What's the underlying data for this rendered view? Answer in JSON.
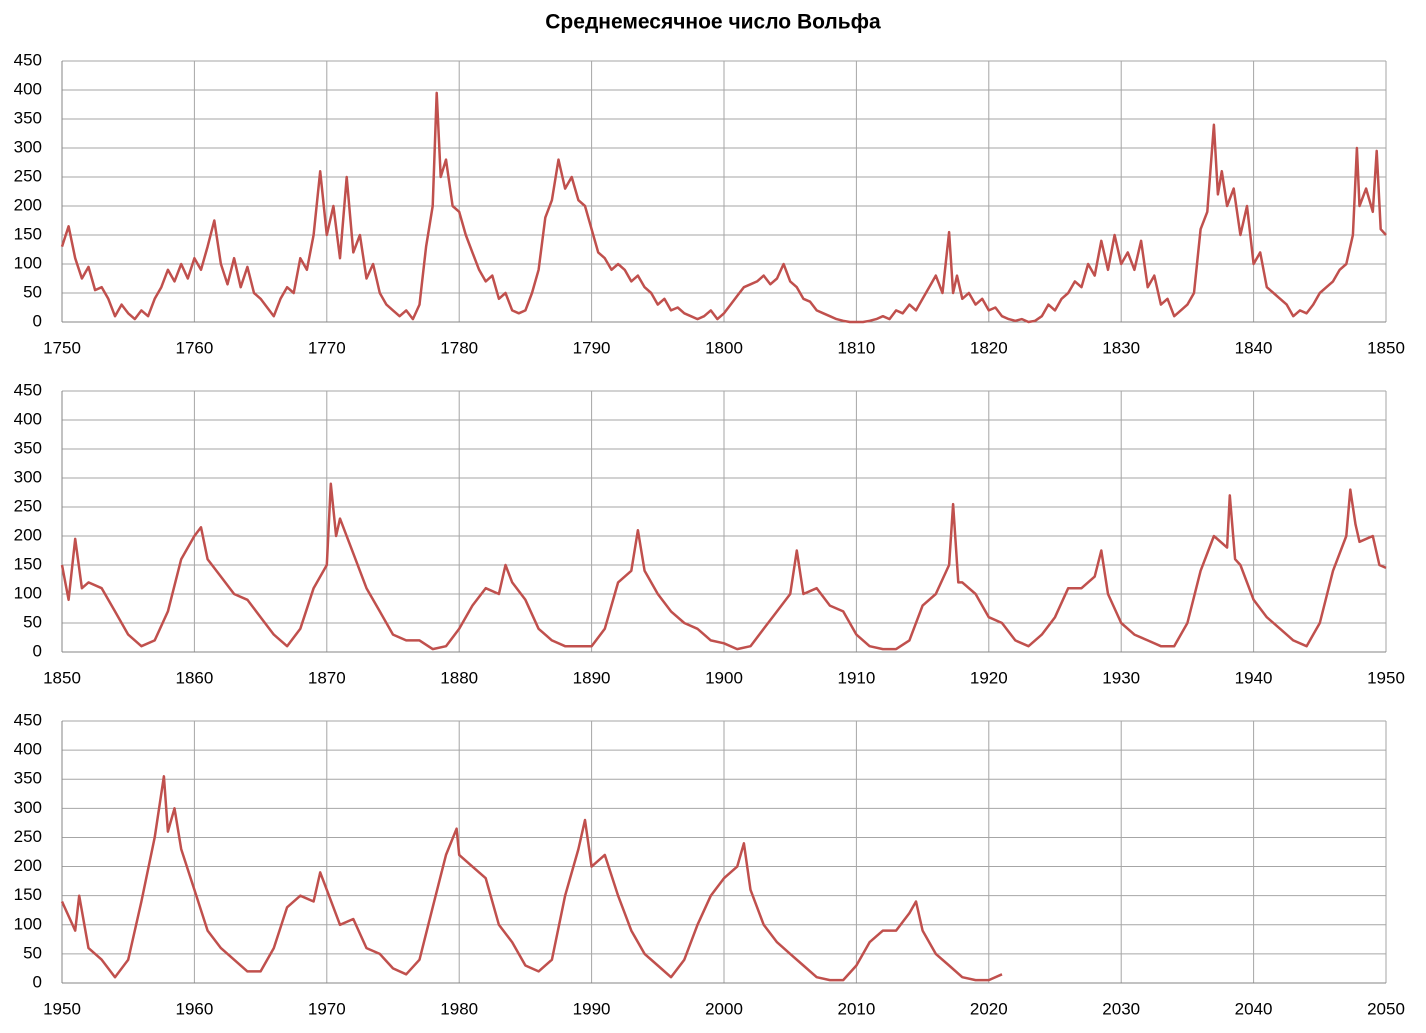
{
  "chart_data": [
    {
      "type": "line",
      "title": "Среднемесячное число Вольфа",
      "color": "#c0504d",
      "grid": true,
      "xlim": [
        1750,
        1850
      ],
      "xticks": [
        1750,
        1760,
        1770,
        1780,
        1790,
        1800,
        1810,
        1820,
        1830,
        1840,
        1850
      ],
      "ylim": [
        0,
        450
      ],
      "yticks": [
        0,
        50,
        100,
        150,
        200,
        250,
        300,
        350,
        400,
        450
      ],
      "x": [
        1750,
        1750.5,
        1751,
        1751.5,
        1752,
        1752.5,
        1753,
        1753.5,
        1754,
        1754.5,
        1755,
        1755.5,
        1756,
        1756.5,
        1757,
        1757.5,
        1758,
        1758.5,
        1759,
        1759.5,
        1760,
        1760.5,
        1761,
        1761.5,
        1762,
        1762.5,
        1763,
        1763.5,
        1764,
        1764.5,
        1765,
        1765.5,
        1766,
        1766.5,
        1767,
        1767.5,
        1768,
        1768.5,
        1769,
        1769.5,
        1770,
        1770.5,
        1771,
        1771.5,
        1772,
        1772.5,
        1773,
        1773.5,
        1774,
        1774.5,
        1775,
        1775.5,
        1776,
        1776.5,
        1777,
        1777.5,
        1778,
        1778.3,
        1778.6,
        1779,
        1779.5,
        1780,
        1780.5,
        1781,
        1781.5,
        1782,
        1782.5,
        1783,
        1783.5,
        1784,
        1784.5,
        1785,
        1785.5,
        1786,
        1786.5,
        1787,
        1787.5,
        1788,
        1788.5,
        1789,
        1789.5,
        1790,
        1790.5,
        1791,
        1791.5,
        1792,
        1792.5,
        1793,
        1793.5,
        1794,
        1794.5,
        1795,
        1795.5,
        1796,
        1796.5,
        1797,
        1797.5,
        1798,
        1798.5,
        1799,
        1799.5,
        1800,
        1800.5,
        1801,
        1801.5,
        1802,
        1802.5,
        1803,
        1803.5,
        1804,
        1804.5,
        1805,
        1805.5,
        1806,
        1806.5,
        1807,
        1807.5,
        1808,
        1808.5,
        1809,
        1809.5,
        1810,
        1810.5,
        1811,
        1811.5,
        1812,
        1812.5,
        1813,
        1813.5,
        1814,
        1814.5,
        1815,
        1815.5,
        1816,
        1816.5,
        1817,
        1817.3,
        1817.6,
        1818,
        1818.5,
        1819,
        1819.5,
        1820,
        1820.5,
        1821,
        1821.5,
        1822,
        1822.5,
        1823,
        1823.5,
        1824,
        1824.5,
        1825,
        1825.5,
        1826,
        1826.5,
        1827,
        1827.5,
        1828,
        1828.5,
        1829,
        1829.5,
        1830,
        1830.5,
        1831,
        1831.5,
        1832,
        1832.5,
        1833,
        1833.5,
        1834,
        1834.5,
        1835,
        1835.5,
        1836,
        1836.5,
        1837,
        1837.3,
        1837.6,
        1838,
        1838.5,
        1839,
        1839.5,
        1840,
        1840.5,
        1841,
        1841.5,
        1842,
        1842.5,
        1843,
        1843.5,
        1844,
        1844.5,
        1845,
        1845.5,
        1846,
        1846.5,
        1847,
        1847.5,
        1847.8,
        1848,
        1848.5,
        1849,
        1849.3,
        1849.6,
        1850
      ],
      "values": [
        130,
        165,
        110,
        75,
        95,
        55,
        60,
        40,
        10,
        30,
        15,
        5,
        20,
        10,
        40,
        60,
        90,
        70,
        100,
        75,
        110,
        90,
        130,
        175,
        100,
        65,
        110,
        60,
        95,
        50,
        40,
        25,
        10,
        40,
        60,
        50,
        110,
        90,
        150,
        260,
        150,
        200,
        110,
        250,
        120,
        150,
        75,
        100,
        50,
        30,
        20,
        10,
        20,
        5,
        30,
        130,
        200,
        395,
        250,
        280,
        200,
        190,
        150,
        120,
        90,
        70,
        80,
        40,
        50,
        20,
        15,
        20,
        50,
        90,
        180,
        210,
        280,
        230,
        250,
        210,
        200,
        160,
        120,
        110,
        90,
        100,
        90,
        70,
        80,
        60,
        50,
        30,
        40,
        20,
        25,
        15,
        10,
        5,
        10,
        20,
        5,
        15,
        30,
        45,
        60,
        65,
        70,
        80,
        65,
        75,
        100,
        70,
        60,
        40,
        35,
        20,
        15,
        10,
        5,
        2,
        0,
        0,
        0,
        2,
        5,
        10,
        5,
        20,
        15,
        30,
        20,
        40,
        60,
        80,
        50,
        155,
        50,
        80,
        40,
        50,
        30,
        40,
        20,
        25,
        10,
        5,
        2,
        5,
        0,
        2,
        10,
        30,
        20,
        40,
        50,
        70,
        60,
        100,
        80,
        140,
        90,
        150,
        100,
        120,
        90,
        140,
        60,
        80,
        30,
        40,
        10,
        20,
        30,
        50,
        160,
        190,
        340,
        220,
        260,
        200,
        230,
        150,
        200,
        100,
        120,
        60,
        50,
        40,
        30,
        10,
        20,
        15,
        30,
        50,
        60,
        70,
        90,
        100,
        150,
        300,
        200,
        230,
        190,
        295,
        160,
        150
      ]
    },
    {
      "type": "line",
      "color": "#c0504d",
      "grid": true,
      "xlim": [
        1850,
        1950
      ],
      "xticks": [
        1850,
        1860,
        1870,
        1880,
        1890,
        1900,
        1910,
        1920,
        1930,
        1940,
        1950
      ],
      "ylim": [
        0,
        450
      ],
      "yticks": [
        0,
        50,
        100,
        150,
        200,
        250,
        300,
        350,
        400,
        450
      ],
      "x": [
        1850,
        1850.5,
        1851,
        1851.5,
        1852,
        1853,
        1854,
        1855,
        1856,
        1857,
        1858,
        1859,
        1860,
        1860.5,
        1861,
        1862,
        1863,
        1864,
        1865,
        1866,
        1867,
        1868,
        1869,
        1870,
        1870.3,
        1870.7,
        1871,
        1872,
        1873,
        1874,
        1875,
        1876,
        1877,
        1878,
        1879,
        1880,
        1881,
        1882,
        1883,
        1883.5,
        1884,
        1885,
        1886,
        1887,
        1888,
        1889,
        1890,
        1891,
        1892,
        1893,
        1893.5,
        1894,
        1895,
        1896,
        1897,
        1898,
        1899,
        1900,
        1901,
        1902,
        1903,
        1904,
        1905,
        1905.5,
        1906,
        1907,
        1908,
        1909,
        1910,
        1911,
        1912,
        1913,
        1914,
        1915,
        1916,
        1917,
        1917.3,
        1917.7,
        1918,
        1919,
        1920,
        1921,
        1922,
        1923,
        1924,
        1925,
        1926,
        1927,
        1928,
        1928.5,
        1929,
        1930,
        1931,
        1932,
        1933,
        1934,
        1935,
        1936,
        1937,
        1938,
        1938.2,
        1938.6,
        1939,
        1940,
        1941,
        1942,
        1943,
        1944,
        1945,
        1946,
        1947,
        1947.3,
        1947.7,
        1948,
        1949,
        1949.5,
        1950
      ],
      "values": [
        150,
        90,
        195,
        110,
        120,
        110,
        70,
        30,
        10,
        20,
        70,
        160,
        200,
        215,
        160,
        130,
        100,
        90,
        60,
        30,
        10,
        40,
        110,
        150,
        290,
        200,
        230,
        170,
        110,
        70,
        30,
        20,
        20,
        5,
        10,
        40,
        80,
        110,
        100,
        150,
        120,
        90,
        40,
        20,
        10,
        10,
        10,
        40,
        120,
        140,
        210,
        140,
        100,
        70,
        50,
        40,
        20,
        15,
        5,
        10,
        40,
        70,
        100,
        175,
        100,
        110,
        80,
        70,
        30,
        10,
        5,
        5,
        20,
        80,
        100,
        150,
        255,
        120,
        120,
        100,
        60,
        50,
        20,
        10,
        30,
        60,
        110,
        110,
        130,
        175,
        100,
        50,
        30,
        20,
        10,
        10,
        50,
        140,
        200,
        180,
        270,
        160,
        150,
        90,
        60,
        40,
        20,
        10,
        50,
        140,
        200,
        280,
        220,
        190,
        200,
        150,
        145
      ]
    },
    {
      "type": "line",
      "color": "#c0504d",
      "grid": true,
      "xlim": [
        1950,
        2050
      ],
      "xticks": [
        1950,
        1960,
        1970,
        1980,
        1990,
        2000,
        2010,
        2020,
        2030,
        2040,
        2050
      ],
      "ylim": [
        0,
        450
      ],
      "yticks": [
        0,
        50,
        100,
        150,
        200,
        250,
        300,
        350,
        400,
        450
      ],
      "x": [
        1950,
        1951,
        1951.3,
        1952,
        1953,
        1954,
        1955,
        1956,
        1957,
        1957.7,
        1958,
        1958.5,
        1959,
        1960,
        1961,
        1962,
        1963,
        1964,
        1965,
        1966,
        1967,
        1968,
        1969,
        1969.5,
        1970,
        1971,
        1972,
        1973,
        1974,
        1975,
        1976,
        1977,
        1978,
        1979,
        1979.8,
        1980,
        1981,
        1982,
        1983,
        1984,
        1985,
        1986,
        1987,
        1988,
        1989,
        1989.5,
        1990,
        1991,
        1992,
        1993,
        1994,
        1995,
        1996,
        1997,
        1998,
        1999,
        2000,
        2001,
        2001.5,
        2002,
        2003,
        2004,
        2005,
        2006,
        2007,
        2008,
        2009,
        2010,
        2011,
        2012,
        2013,
        2014,
        2014.5,
        2015,
        2016,
        2017,
        2018,
        2019,
        2020,
        2021
      ],
      "values": [
        140,
        90,
        150,
        60,
        40,
        10,
        40,
        140,
        250,
        355,
        260,
        300,
        230,
        160,
        90,
        60,
        40,
        20,
        20,
        60,
        130,
        150,
        140,
        190,
        160,
        100,
        110,
        60,
        50,
        25,
        15,
        40,
        130,
        220,
        265,
        220,
        200,
        180,
        100,
        70,
        30,
        20,
        40,
        150,
        230,
        280,
        200,
        220,
        150,
        90,
        50,
        30,
        10,
        40,
        100,
        150,
        180,
        200,
        240,
        160,
        100,
        70,
        50,
        30,
        10,
        5,
        5,
        30,
        70,
        90,
        90,
        120,
        140,
        90,
        50,
        30,
        10,
        5,
        5,
        15
      ]
    }
  ]
}
